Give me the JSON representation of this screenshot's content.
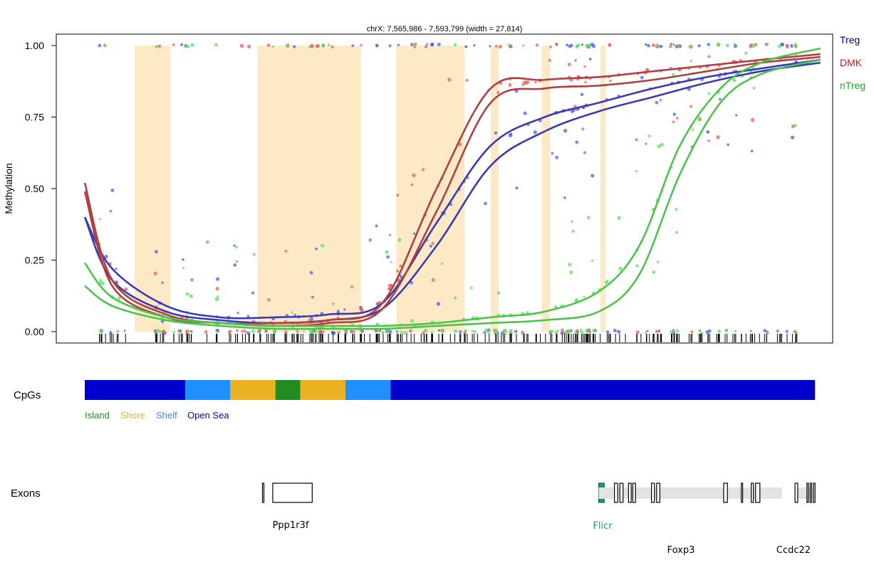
{
  "chart_data": {
    "type": "scatter",
    "title": "chrX: 7,565,986 - 7,593,799 (width = 27,814)",
    "ylabel": "Methylation",
    "xlabel": "",
    "xlim": [
      7565986,
      7593799
    ],
    "ylim": [
      0,
      1
    ],
    "y_ticks": [
      "0.00",
      "0.25",
      "0.50",
      "0.75",
      "1.00"
    ],
    "y_tick_values": [
      0,
      0.25,
      0.5,
      0.75,
      1.0
    ],
    "grid": false,
    "legend_placement": "right",
    "series": [
      {
        "name": "Treg",
        "color": "#0000cc",
        "curves": [
          {
            "x": [
              7565986,
              7567000,
              7569000,
              7571000,
              7573000,
              7575000,
              7577000,
              7579000,
              7581000,
              7583000,
              7585000,
              7587000,
              7589000,
              7591000,
              7593200
            ],
            "y": [
              0.4,
              0.22,
              0.09,
              0.05,
              0.05,
              0.06,
              0.1,
              0.38,
              0.65,
              0.75,
              0.8,
              0.85,
              0.89,
              0.92,
              0.95
            ]
          },
          {
            "x": [
              7565986,
              7567000,
              7569000,
              7571000,
              7573000,
              7575000,
              7577000,
              7579000,
              7581000,
              7583000,
              7585000,
              7587000,
              7589000,
              7591000,
              7593200
            ],
            "y": [
              0.4,
              0.18,
              0.07,
              0.04,
              0.03,
              0.04,
              0.08,
              0.3,
              0.58,
              0.7,
              0.77,
              0.82,
              0.87,
              0.91,
              0.94
            ]
          }
        ]
      },
      {
        "name": "DMK",
        "color": "#b22222",
        "curves": [
          {
            "x": [
              7565986,
              7567000,
              7569000,
              7571000,
              7573000,
              7575000,
              7577000,
              7579000,
              7581000,
              7583000,
              7585000,
              7587000,
              7589000,
              7591000,
              7593200
            ],
            "y": [
              0.52,
              0.18,
              0.06,
              0.03,
              0.03,
              0.04,
              0.1,
              0.5,
              0.85,
              0.88,
              0.89,
              0.91,
              0.93,
              0.95,
              0.97
            ]
          },
          {
            "x": [
              7565986,
              7567000,
              7569000,
              7571000,
              7573000,
              7575000,
              7577000,
              7579000,
              7581000,
              7583000,
              7585000,
              7587000,
              7589000,
              7591000,
              7593200
            ],
            "y": [
              0.49,
              0.16,
              0.05,
              0.03,
              0.02,
              0.03,
              0.08,
              0.42,
              0.8,
              0.85,
              0.86,
              0.88,
              0.91,
              0.94,
              0.96
            ]
          }
        ]
      },
      {
        "name": "nTreg",
        "color": "#22aa22",
        "curves": [
          {
            "x": [
              7565986,
              7567000,
              7569000,
              7571000,
              7573000,
              7575000,
              7577000,
              7579000,
              7581000,
              7583000,
              7585000,
              7586500,
              7588000,
              7589500,
              7591000,
              7593200
            ],
            "y": [
              0.24,
              0.12,
              0.05,
              0.03,
              0.02,
              0.02,
              0.02,
              0.03,
              0.05,
              0.07,
              0.14,
              0.3,
              0.65,
              0.85,
              0.94,
              0.99
            ]
          },
          {
            "x": [
              7565986,
              7567000,
              7569000,
              7571000,
              7573000,
              7575000,
              7577000,
              7579000,
              7581000,
              7583000,
              7585000,
              7586500,
              7588000,
              7589500,
              7591000,
              7593200
            ],
            "y": [
              0.16,
              0.09,
              0.04,
              0.02,
              0.01,
              0.01,
              0.01,
              0.02,
              0.03,
              0.04,
              0.07,
              0.2,
              0.55,
              0.8,
              0.9,
              0.95
            ]
          }
        ]
      }
    ],
    "highlight_regions": [
      [
        7567830,
        7569150
      ],
      [
        7572370,
        7576200
      ],
      [
        7577510,
        7580040
      ],
      [
        7581000,
        7581300
      ],
      [
        7582890,
        7583200
      ],
      [
        7585060,
        7585250
      ]
    ]
  },
  "cpg_track": {
    "label": "CpGs",
    "segments": [
      {
        "start": 7565986,
        "end": 7569700,
        "class": "Open Sea"
      },
      {
        "start": 7569700,
        "end": 7571370,
        "class": "Shelf"
      },
      {
        "start": 7571370,
        "end": 7573040,
        "class": "Shore"
      },
      {
        "start": 7573040,
        "end": 7573960,
        "class": "Island"
      },
      {
        "start": 7573960,
        "end": 7575630,
        "class": "Shore"
      },
      {
        "start": 7575630,
        "end": 7577300,
        "class": "Shelf"
      },
      {
        "start": 7577300,
        "end": 7593000,
        "class": "Open Sea"
      }
    ],
    "legend": [
      {
        "name": "Island",
        "color": "#228b22"
      },
      {
        "name": "Shore",
        "color": "#eab123"
      },
      {
        "name": "Shelf",
        "color": "#1e90ff"
      },
      {
        "name": "Open Sea",
        "color": "#0000cd"
      }
    ]
  },
  "exon_track": {
    "label": "Exons",
    "genes": [
      {
        "name": "Ppp1r3f",
        "color": "#000000",
        "start": 7572560,
        "end": 7574400,
        "exons": [
          [
            7572560,
            7572600
          ],
          [
            7572940,
            7574400
          ]
        ]
      },
      {
        "name": "Flicr",
        "color": "#1a9a70",
        "start": 7585000,
        "end": 7585200,
        "exons": [
          [
            7585000,
            7585200
          ]
        ]
      },
      {
        "name": "Foxp3",
        "color": "#000000",
        "start": 7585000,
        "end": 7591770,
        "exons": [
          [
            7585580,
            7585700
          ],
          [
            7585780,
            7585900
          ],
          [
            7586100,
            7586200
          ],
          [
            7586260,
            7586360
          ],
          [
            7586950,
            7587060
          ],
          [
            7587140,
            7587260
          ],
          [
            7589620,
            7589760
          ],
          [
            7590270,
            7590320
          ],
          [
            7590640,
            7590720
          ],
          [
            7590800,
            7590960
          ]
        ]
      },
      {
        "name": "Ccdc22",
        "color": "#000000",
        "start": 7592260,
        "end": 7593000,
        "exons": [
          [
            7592260,
            7592360
          ],
          [
            7592700,
            7592750
          ],
          [
            7592820,
            7592870
          ],
          [
            7592940,
            7593000
          ]
        ]
      }
    ]
  }
}
